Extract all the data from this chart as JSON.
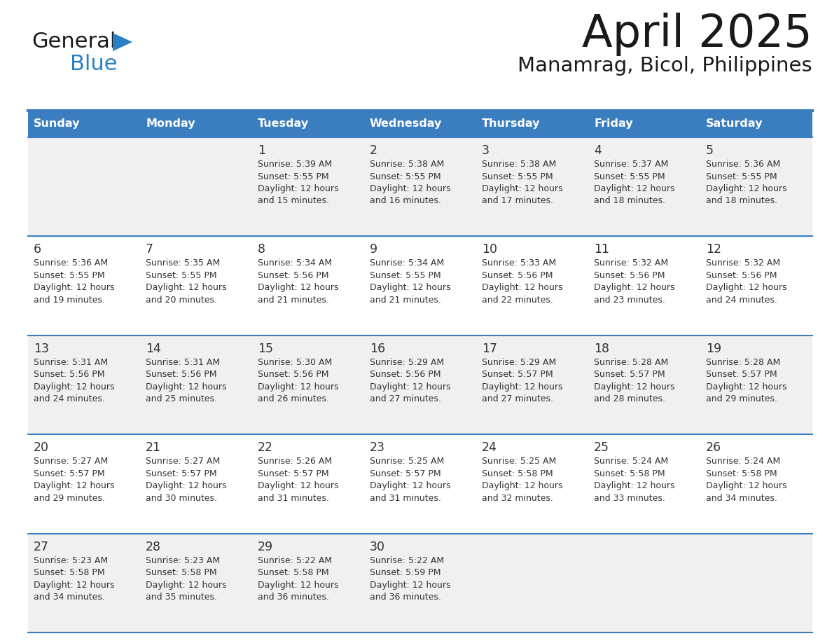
{
  "title": "April 2025",
  "subtitle": "Manamrag, Bicol, Philippines",
  "days_of_week": [
    "Sunday",
    "Monday",
    "Tuesday",
    "Wednesday",
    "Thursday",
    "Friday",
    "Saturday"
  ],
  "header_bg": "#3a7ebf",
  "header_text": "#ffffff",
  "row_bg_odd": "#f0f0f0",
  "row_bg_even": "#ffffff",
  "separator_color": "#3a7ebf",
  "text_color": "#333333",
  "title_color": "#1a1a1a",
  "calendar_data": [
    [
      {
        "day": "",
        "sunrise": "",
        "sunset": "",
        "daylight": ""
      },
      {
        "day": "",
        "sunrise": "",
        "sunset": "",
        "daylight": ""
      },
      {
        "day": "1",
        "sunrise": "5:39 AM",
        "sunset": "5:55 PM",
        "daylight_min": "15 minutes."
      },
      {
        "day": "2",
        "sunrise": "5:38 AM",
        "sunset": "5:55 PM",
        "daylight_min": "16 minutes."
      },
      {
        "day": "3",
        "sunrise": "5:38 AM",
        "sunset": "5:55 PM",
        "daylight_min": "17 minutes."
      },
      {
        "day": "4",
        "sunrise": "5:37 AM",
        "sunset": "5:55 PM",
        "daylight_min": "18 minutes."
      },
      {
        "day": "5",
        "sunrise": "5:36 AM",
        "sunset": "5:55 PM",
        "daylight_min": "18 minutes."
      }
    ],
    [
      {
        "day": "6",
        "sunrise": "5:36 AM",
        "sunset": "5:55 PM",
        "daylight_min": "19 minutes."
      },
      {
        "day": "7",
        "sunrise": "5:35 AM",
        "sunset": "5:55 PM",
        "daylight_min": "20 minutes."
      },
      {
        "day": "8",
        "sunrise": "5:34 AM",
        "sunset": "5:56 PM",
        "daylight_min": "21 minutes."
      },
      {
        "day": "9",
        "sunrise": "5:34 AM",
        "sunset": "5:55 PM",
        "daylight_min": "21 minutes."
      },
      {
        "day": "10",
        "sunrise": "5:33 AM",
        "sunset": "5:56 PM",
        "daylight_min": "22 minutes."
      },
      {
        "day": "11",
        "sunrise": "5:32 AM",
        "sunset": "5:56 PM",
        "daylight_min": "23 minutes."
      },
      {
        "day": "12",
        "sunrise": "5:32 AM",
        "sunset": "5:56 PM",
        "daylight_min": "24 minutes."
      }
    ],
    [
      {
        "day": "13",
        "sunrise": "5:31 AM",
        "sunset": "5:56 PM",
        "daylight_min": "24 minutes."
      },
      {
        "day": "14",
        "sunrise": "5:31 AM",
        "sunset": "5:56 PM",
        "daylight_min": "25 minutes."
      },
      {
        "day": "15",
        "sunrise": "5:30 AM",
        "sunset": "5:56 PM",
        "daylight_min": "26 minutes."
      },
      {
        "day": "16",
        "sunrise": "5:29 AM",
        "sunset": "5:56 PM",
        "daylight_min": "27 minutes."
      },
      {
        "day": "17",
        "sunrise": "5:29 AM",
        "sunset": "5:57 PM",
        "daylight_min": "27 minutes."
      },
      {
        "day": "18",
        "sunrise": "5:28 AM",
        "sunset": "5:57 PM",
        "daylight_min": "28 minutes."
      },
      {
        "day": "19",
        "sunrise": "5:28 AM",
        "sunset": "5:57 PM",
        "daylight_min": "29 minutes."
      }
    ],
    [
      {
        "day": "20",
        "sunrise": "5:27 AM",
        "sunset": "5:57 PM",
        "daylight_min": "29 minutes."
      },
      {
        "day": "21",
        "sunrise": "5:27 AM",
        "sunset": "5:57 PM",
        "daylight_min": "30 minutes."
      },
      {
        "day": "22",
        "sunrise": "5:26 AM",
        "sunset": "5:57 PM",
        "daylight_min": "31 minutes."
      },
      {
        "day": "23",
        "sunrise": "5:25 AM",
        "sunset": "5:57 PM",
        "daylight_min": "31 minutes."
      },
      {
        "day": "24",
        "sunrise": "5:25 AM",
        "sunset": "5:58 PM",
        "daylight_min": "32 minutes."
      },
      {
        "day": "25",
        "sunrise": "5:24 AM",
        "sunset": "5:58 PM",
        "daylight_min": "33 minutes."
      },
      {
        "day": "26",
        "sunrise": "5:24 AM",
        "sunset": "5:58 PM",
        "daylight_min": "34 minutes."
      }
    ],
    [
      {
        "day": "27",
        "sunrise": "5:23 AM",
        "sunset": "5:58 PM",
        "daylight_min": "34 minutes."
      },
      {
        "day": "28",
        "sunrise": "5:23 AM",
        "sunset": "5:58 PM",
        "daylight_min": "35 minutes."
      },
      {
        "day": "29",
        "sunrise": "5:22 AM",
        "sunset": "5:58 PM",
        "daylight_min": "36 minutes."
      },
      {
        "day": "30",
        "sunrise": "5:22 AM",
        "sunset": "5:59 PM",
        "daylight_min": "36 minutes."
      },
      {
        "day": "",
        "sunrise": "",
        "sunset": "",
        "daylight_min": ""
      },
      {
        "day": "",
        "sunrise": "",
        "sunset": "",
        "daylight_min": ""
      },
      {
        "day": "",
        "sunrise": "",
        "sunset": "",
        "daylight_min": ""
      }
    ]
  ],
  "logo_general_color": "#1a1a1a",
  "logo_blue_color": "#2980c4",
  "logo_triangle_color": "#2980c4"
}
